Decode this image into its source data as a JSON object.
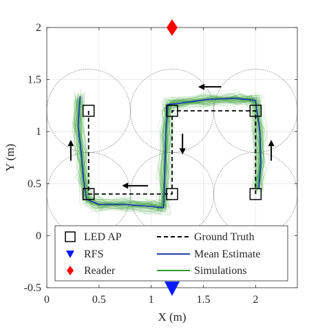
{
  "chart_data": {
    "type": "line",
    "title": "",
    "xlabel": "X (m)",
    "ylabel": "Y (m)",
    "xlim": [
      0,
      2.4
    ],
    "ylim": [
      -0.5,
      2
    ],
    "xticks": [
      0,
      0.5,
      1,
      1.5,
      2
    ],
    "xtick_labels": [
      "0",
      "0.5",
      "1",
      "1.5",
      "2"
    ],
    "yticks": [
      -0.5,
      0,
      0.5,
      1,
      1.5,
      2
    ],
    "ytick_labels": [
      "-0.5",
      "0",
      "0.5",
      "1",
      "1.5",
      "2"
    ],
    "grid": true,
    "legend_position": "bottom",
    "colors": {
      "led": "#000000",
      "truth": "#000000",
      "mean": "#1f3fae",
      "sim": "#2e9a2e",
      "rfs": "#0a1aff",
      "reader": "#ff0000",
      "circle": "#555555"
    },
    "led_ap": {
      "name": "LED AP",
      "x": [
        0.4,
        0.4,
        1.2,
        1.2,
        2.0,
        2.0
      ],
      "y": [
        1.2,
        0.4,
        0.4,
        1.2,
        1.2,
        0.4
      ]
    },
    "rfs": {
      "name": "RFS",
      "x": [
        1.2
      ],
      "y": [
        -0.5
      ]
    },
    "reader": {
      "name": "Reader",
      "x": [
        1.2
      ],
      "y": [
        2.0
      ]
    },
    "coverage_circles": {
      "centers_x": [
        0.4,
        0.4,
        1.2,
        1.2,
        2.0,
        2.0
      ],
      "centers_y": [
        1.2,
        0.4,
        0.4,
        1.2,
        1.2,
        0.4
      ],
      "radius": 0.4
    },
    "series": [
      {
        "name": "Ground Truth",
        "style": "dashed",
        "x": [
          0.4,
          0.4,
          1.2,
          1.2,
          2.0,
          2.0
        ],
        "y": [
          1.2,
          0.4,
          0.4,
          1.2,
          1.2,
          0.4
        ]
      },
      {
        "name": "Mean Estimate",
        "style": "solid",
        "x": [
          0.32,
          0.3,
          0.33,
          0.35,
          0.38,
          0.5,
          0.75,
          1.0,
          1.12,
          1.13,
          1.14,
          1.16,
          1.25,
          1.55,
          1.8,
          2.0,
          2.04,
          2.05,
          2.03
        ],
        "y": [
          1.34,
          1.05,
          0.8,
          0.55,
          0.35,
          0.3,
          0.3,
          0.28,
          0.27,
          0.6,
          1.0,
          1.26,
          1.27,
          1.31,
          1.32,
          1.3,
          1.0,
          0.7,
          0.45
        ]
      },
      {
        "name": "Simulations",
        "style": "band",
        "x": [
          0.32,
          0.3,
          0.33,
          0.35,
          0.38,
          0.5,
          0.75,
          1.0,
          1.12,
          1.13,
          1.14,
          1.16,
          1.25,
          1.55,
          1.8,
          2.0,
          2.04,
          2.05,
          2.03
        ],
        "y": [
          1.34,
          1.05,
          0.8,
          0.55,
          0.35,
          0.3,
          0.3,
          0.28,
          0.27,
          0.6,
          1.0,
          1.26,
          1.27,
          1.31,
          1.32,
          1.3,
          1.0,
          0.7,
          0.45
        ]
      }
    ],
    "direction_arrows": [
      {
        "x1": 0.23,
        "y1": 0.72,
        "x2": 0.23,
        "y2": 0.92
      },
      {
        "x1": 0.97,
        "y1": 0.48,
        "x2": 0.72,
        "y2": 0.48
      },
      {
        "x1": 1.3,
        "y1": 0.98,
        "x2": 1.3,
        "y2": 0.78
      },
      {
        "x1": 1.67,
        "y1": 1.43,
        "x2": 1.45,
        "y2": 1.43
      },
      {
        "x1": 2.15,
        "y1": 0.72,
        "x2": 2.15,
        "y2": 0.92
      }
    ],
    "legend": [
      {
        "label": "LED AP",
        "marker": "square"
      },
      {
        "label": "Ground Truth",
        "marker": "dashed"
      },
      {
        "label": "RFS",
        "marker": "triangle-down"
      },
      {
        "label": "Mean Estimate",
        "marker": "blue-line"
      },
      {
        "label": "Reader",
        "marker": "diamond"
      },
      {
        "label": "Simulations",
        "marker": "green-line"
      }
    ]
  }
}
